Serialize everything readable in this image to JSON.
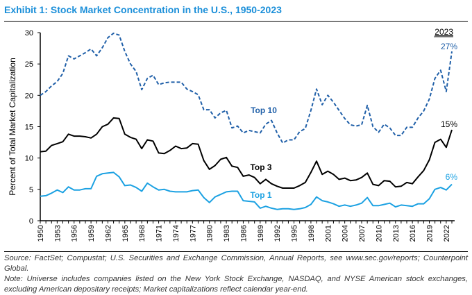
{
  "title": "Exhibit 1: Stock Market Concentration in the U.S., 1950-2023",
  "source": "Source: FactSet; Compustat; U.S. Securities and Exchange Commission, Annual Reports, see www.sec.gov/reports; Counterpoint Global.",
  "note": "Note: Universe includes companies listed on the New York Stock Exchange, NASDAQ, and NYSE American stock exchanges, excluding American depositary receipts; Market capitalizations reflect calendar year-end.",
  "chart_data": {
    "type": "line",
    "title": "Exhibit 1: Stock Market Concentration in the U.S., 1950-2023",
    "xlabel": "",
    "ylabel": "Percent of Total Market Capitalization",
    "xlim": [
      1950,
      2023
    ],
    "ylim": [
      0,
      30
    ],
    "yticks": [
      "0",
      "5",
      "10",
      "15",
      "20",
      "25",
      "30"
    ],
    "xticks": [
      "1950",
      "1953",
      "1956",
      "1959",
      "1962",
      "1965",
      "1968",
      "1971",
      "1974",
      "1977",
      "1980",
      "1983",
      "1986",
      "1989",
      "1992",
      "1995",
      "1998",
      "2001",
      "2004",
      "2007",
      "2010",
      "2013",
      "2016",
      "2019",
      "2022"
    ],
    "grid": false,
    "legend": "inline labels",
    "end_label_header": "2023",
    "x_start": 1950,
    "series": [
      {
        "name": "Top 10",
        "color": "#1f5fa8",
        "style": "dashed",
        "end_label": "27%",
        "values": [
          20.0,
          20.6,
          21.5,
          22.2,
          23.5,
          26.3,
          25.8,
          26.3,
          26.8,
          27.4,
          26.3,
          27.6,
          29.2,
          29.9,
          29.6,
          27.0,
          25.0,
          23.8,
          20.9,
          22.7,
          23.2,
          21.7,
          22.0,
          22.1,
          22.1,
          22.1,
          21.0,
          20.6,
          20.1,
          17.7,
          17.7,
          16.4,
          17.2,
          17.6,
          14.8,
          15.1,
          14.0,
          14.4,
          14.2,
          14.0,
          15.4,
          16.0,
          14.0,
          12.4,
          12.9,
          12.9,
          14.2,
          14.7,
          17.6,
          21.0,
          18.5,
          20.0,
          18.9,
          17.6,
          16.3,
          15.3,
          15.1,
          15.3,
          18.4,
          15.0,
          14.1,
          15.4,
          14.8,
          13.6,
          13.6,
          14.9,
          14.9,
          16.4,
          17.5,
          19.4,
          22.7,
          24.0,
          20.6,
          27.0
        ]
      },
      {
        "name": "Top 3",
        "color": "#000000",
        "style": "solid",
        "end_label": "15%",
        "values": [
          11.0,
          11.1,
          12.0,
          12.3,
          12.6,
          13.8,
          13.5,
          13.5,
          13.4,
          13.2,
          13.8,
          15.0,
          15.4,
          16.4,
          16.3,
          13.8,
          13.3,
          13.0,
          11.5,
          12.9,
          12.7,
          10.8,
          10.7,
          11.2,
          11.9,
          11.5,
          11.6,
          12.3,
          12.2,
          9.6,
          8.2,
          8.8,
          9.8,
          10.1,
          8.7,
          8.5,
          7.1,
          7.3,
          6.9,
          5.9,
          6.6,
          5.9,
          5.5,
          5.2,
          5.2,
          5.2,
          5.6,
          6.1,
          7.7,
          9.5,
          7.4,
          7.9,
          7.4,
          6.6,
          6.8,
          6.4,
          6.5,
          6.9,
          7.6,
          5.8,
          5.6,
          6.4,
          6.3,
          5.4,
          5.5,
          6.1,
          5.9,
          7.0,
          8.0,
          9.7,
          12.5,
          13.0,
          11.7,
          14.5
        ]
      },
      {
        "name": "Top 1",
        "color": "#1ba1e2",
        "style": "solid",
        "end_label": "6%",
        "values": [
          3.9,
          4.0,
          4.4,
          4.9,
          4.5,
          5.4,
          4.9,
          4.9,
          5.1,
          5.1,
          7.1,
          7.5,
          7.6,
          7.7,
          7.0,
          5.6,
          5.7,
          5.3,
          4.7,
          6.0,
          5.4,
          4.9,
          5.0,
          4.7,
          4.6,
          4.6,
          4.6,
          4.8,
          4.9,
          3.7,
          2.9,
          3.8,
          4.2,
          4.6,
          4.7,
          4.7,
          3.2,
          3.1,
          3.0,
          2.0,
          2.3,
          2.0,
          1.8,
          1.9,
          1.9,
          1.8,
          1.9,
          2.1,
          2.6,
          3.8,
          3.2,
          3.0,
          2.7,
          2.3,
          2.5,
          2.3,
          2.5,
          2.8,
          3.7,
          2.4,
          2.4,
          2.6,
          2.8,
          2.2,
          2.5,
          2.4,
          2.3,
          2.7,
          2.7,
          3.5,
          5.0,
          5.3,
          4.9,
          5.8
        ]
      }
    ]
  }
}
